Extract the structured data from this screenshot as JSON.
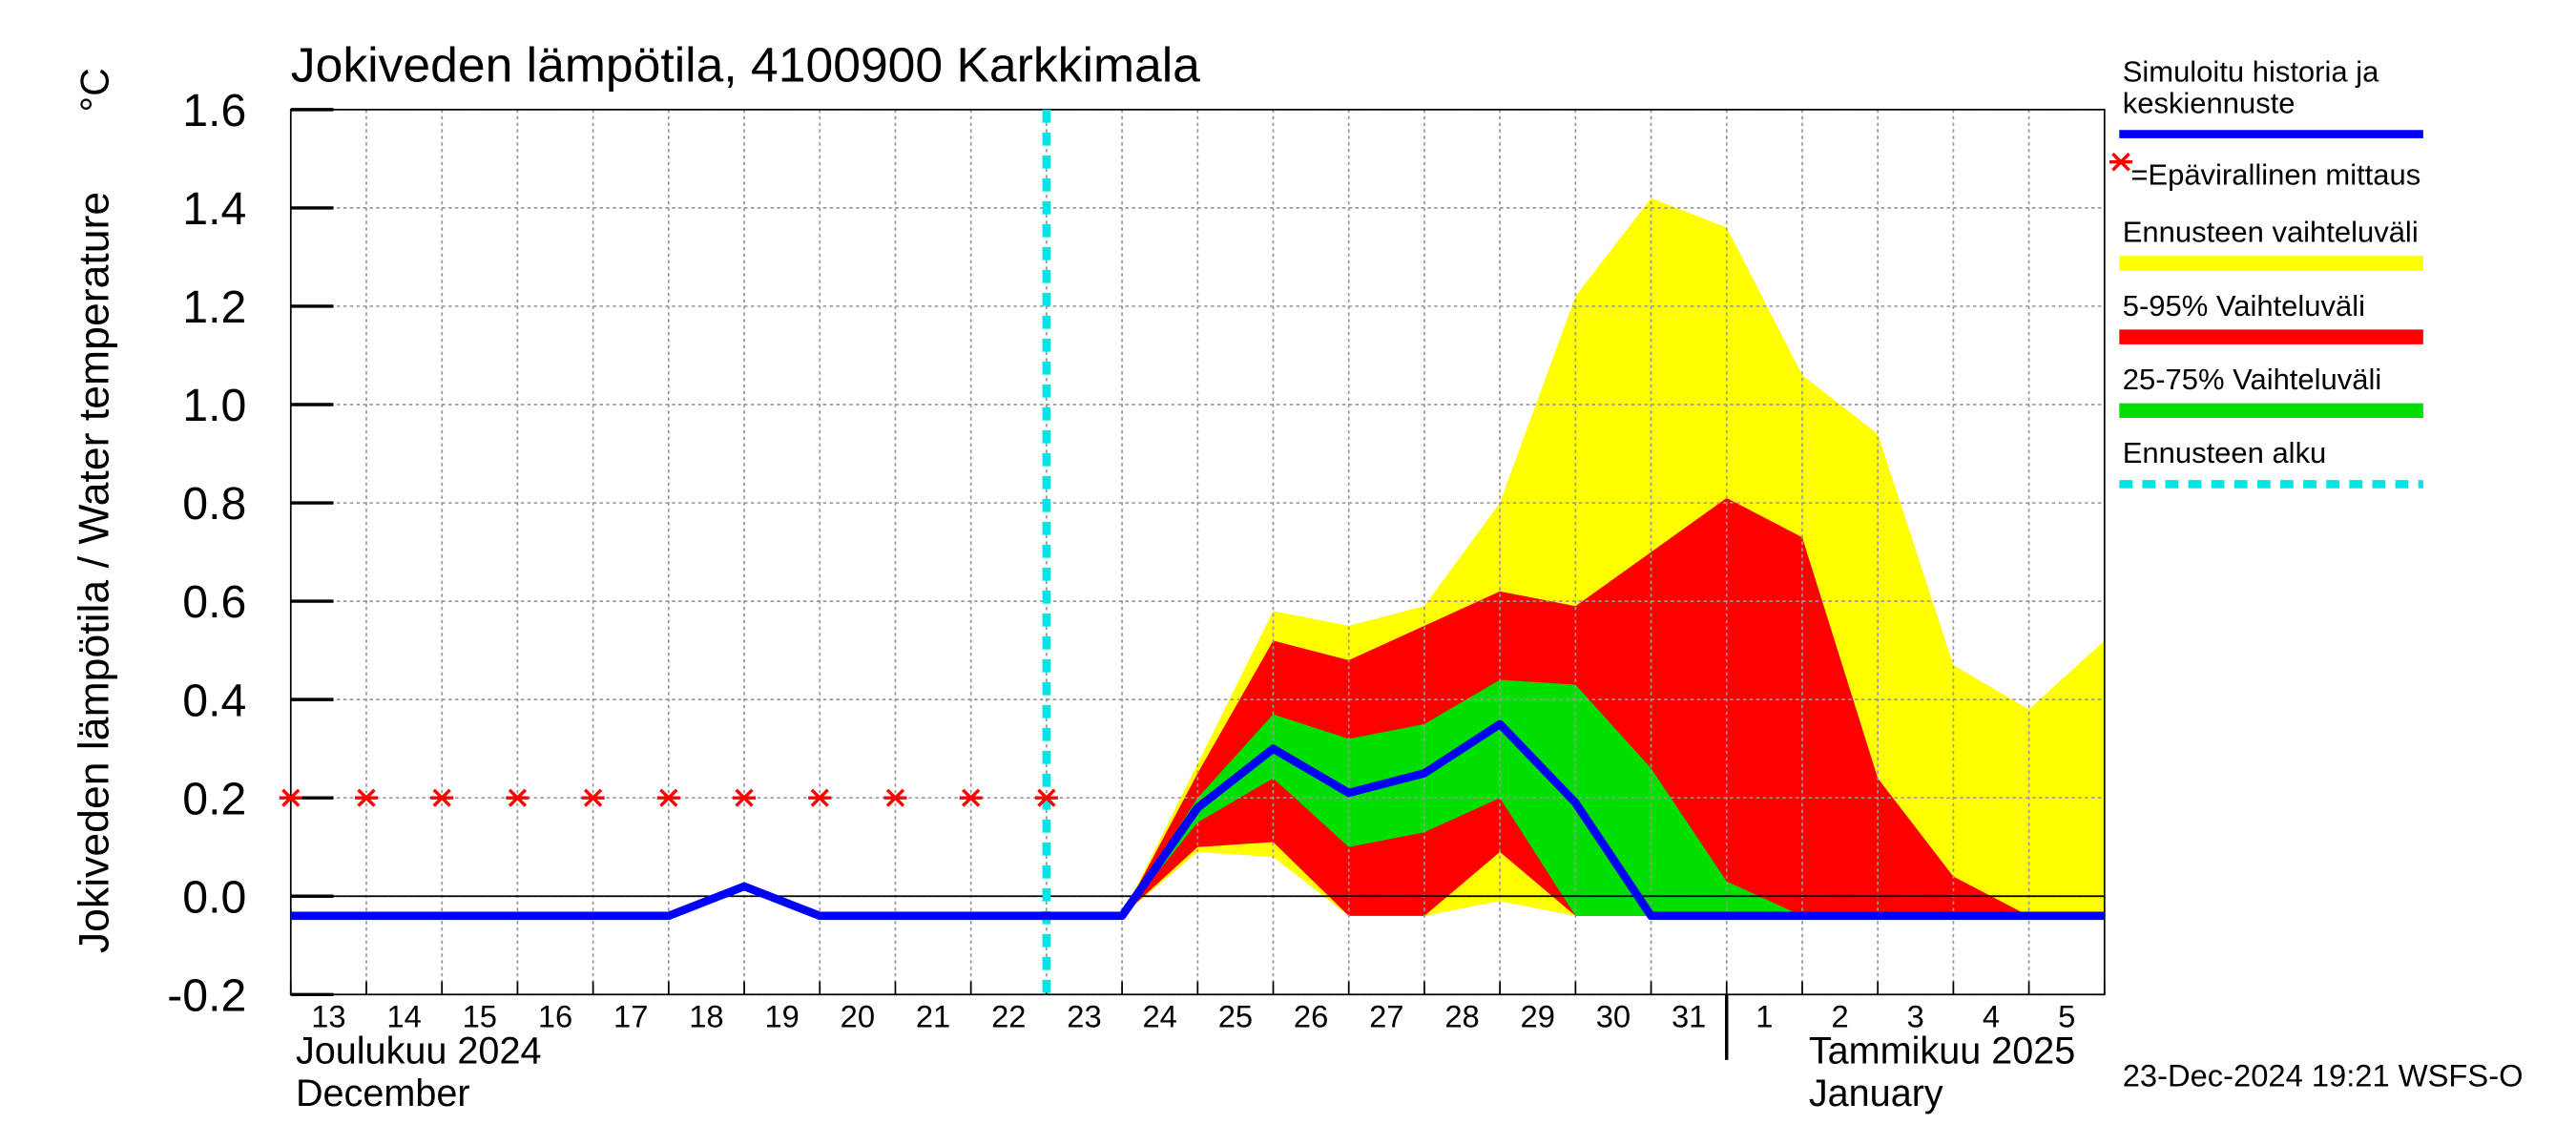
{
  "chart_data": {
    "type": "band-forecast",
    "title": "Jokiveden lämpötila, 4100900 Karkkimala",
    "y_label": "Jokiveden lämpötila / Water temperature",
    "y_unit": "°C",
    "categories": [
      "13",
      "14",
      "15",
      "16",
      "17",
      "18",
      "19",
      "20",
      "21",
      "22",
      "23",
      "24",
      "25",
      "26",
      "27",
      "28",
      "29",
      "30",
      "31",
      "1",
      "2",
      "3",
      "4",
      "5",
      null
    ],
    "month_labels": [
      [
        "Joulukuu  2024",
        "December"
      ],
      [
        "Tammikuu  2025",
        "January"
      ]
    ],
    "month_start": "1",
    "forecast_start": "23",
    "timestamp": "23-Dec-2024 19:21 WSFS-O",
    "ylim": [
      -0.2,
      1.6
    ],
    "yticks": [
      -0.2,
      {
        "value": 0,
        "label": "0.0"
      },
      0.2,
      0.4,
      0.6,
      0.8,
      {
        "value": 1,
        "label": "1.0"
      },
      1.2,
      1.4,
      1.6
    ],
    "grid": true,
    "bands": [
      {
        "name": "Ennusteen vaihteluväli",
        "color": "#ffff00",
        "upper": [
          null,
          null,
          null,
          null,
          null,
          null,
          null,
          null,
          null,
          null,
          null,
          -0.04,
          0.27,
          0.58,
          0.55,
          0.59,
          0.8,
          1.22,
          1.42,
          1.36,
          1.06,
          0.94,
          0.47,
          0.38,
          0.52
        ],
        "lower": [
          null,
          null,
          null,
          null,
          null,
          null,
          null,
          null,
          null,
          null,
          null,
          -0.04,
          0.09,
          0.08,
          -0.04,
          -0.04,
          -0.01,
          -0.04,
          -0.04,
          -0.04,
          -0.04,
          -0.04,
          -0.04,
          -0.04,
          -0.04
        ]
      },
      {
        "name": "5-95% Vaihteluväli",
        "color": "#ff0000",
        "upper": [
          null,
          null,
          null,
          null,
          null,
          null,
          null,
          null,
          null,
          null,
          null,
          -0.04,
          0.25,
          0.52,
          0.48,
          0.55,
          0.62,
          0.59,
          0.7,
          0.81,
          0.73,
          0.24,
          0.04,
          -0.04,
          -0.04
        ],
        "lower": [
          null,
          null,
          null,
          null,
          null,
          null,
          null,
          null,
          null,
          null,
          null,
          -0.04,
          0.1,
          0.11,
          -0.04,
          -0.04,
          0.09,
          -0.04,
          -0.04,
          -0.04,
          -0.04,
          -0.04,
          -0.04,
          -0.04,
          -0.04
        ]
      },
      {
        "name": "25-75% Vaihteluväli",
        "color": "#00e000",
        "upper": [
          null,
          null,
          null,
          null,
          null,
          null,
          null,
          null,
          null,
          null,
          null,
          -0.04,
          0.2,
          0.37,
          0.32,
          0.35,
          0.44,
          0.43,
          0.26,
          0.03,
          -0.04,
          -0.04,
          -0.04,
          -0.04,
          -0.04
        ],
        "lower": [
          null,
          null,
          null,
          null,
          null,
          null,
          null,
          null,
          null,
          null,
          null,
          -0.04,
          0.15,
          0.24,
          0.1,
          0.13,
          0.2,
          -0.04,
          -0.04,
          -0.04,
          -0.04,
          -0.04,
          -0.04,
          -0.04,
          -0.04
        ]
      }
    ],
    "series": [
      {
        "name": [
          "Simuloitu historia ja",
          "keskiennuste"
        ],
        "color": "#0000ff",
        "values": [
          -0.04,
          -0.04,
          -0.04,
          -0.04,
          -0.04,
          -0.04,
          0.02,
          -0.04,
          -0.04,
          -0.04,
          -0.04,
          -0.04,
          0.18,
          0.3,
          0.21,
          0.25,
          0.35,
          0.19,
          -0.04,
          -0.04,
          -0.04,
          -0.04,
          -0.04,
          -0.04,
          -0.04
        ]
      }
    ],
    "measurements": {
      "name": "=Epävirallinen mittaus",
      "color": "#ff0000",
      "values": [
        0.2,
        0.2,
        0.2,
        0.2,
        0.2,
        0.2,
        0.2,
        0.2,
        0.2,
        0.2,
        0.2,
        null,
        null,
        null,
        null,
        null,
        null,
        null,
        null,
        null,
        null,
        null,
        null,
        null,
        null
      ]
    },
    "forecast_line": {
      "name": "Ennusteen alku",
      "color": "#00e5e5"
    }
  }
}
